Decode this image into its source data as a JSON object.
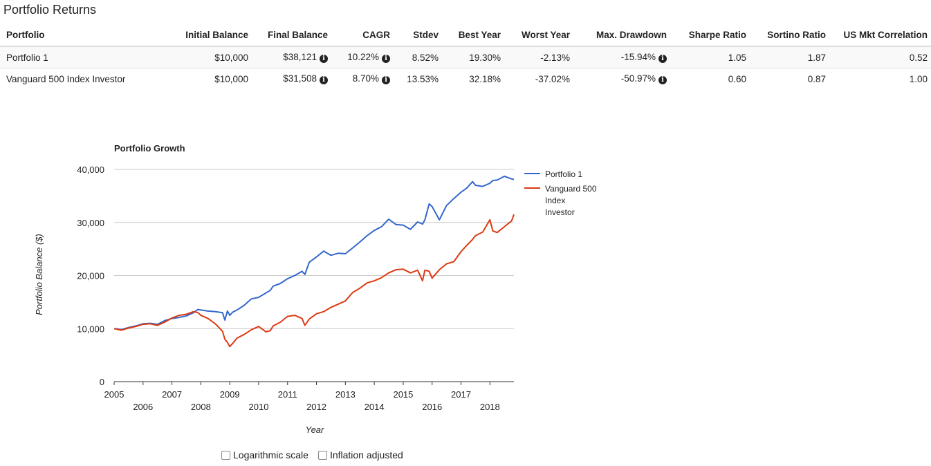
{
  "page_title": "Portfolio Returns",
  "table": {
    "columns": [
      "Portfolio",
      "Initial Balance",
      "Final Balance",
      "CAGR",
      "Stdev",
      "Best Year",
      "Worst Year",
      "Max. Drawdown",
      "Sharpe Ratio",
      "Sortino Ratio",
      "US Mkt Correlation"
    ],
    "rows": [
      {
        "portfolio": "Portfolio 1",
        "initial_balance": "$10,000",
        "final_balance": "$38,121",
        "cagr": "10.22%",
        "stdev": "8.52%",
        "best_year": "19.30%",
        "worst_year": "-2.13%",
        "max_drawdown": "-15.94%",
        "sharpe": "1.05",
        "sortino": "1.87",
        "us_mkt_corr": "0.52"
      },
      {
        "portfolio": "Vanguard 500 Index Investor",
        "initial_balance": "$10,000",
        "final_balance": "$31,508",
        "cagr": "8.70%",
        "stdev": "13.53%",
        "best_year": "32.18%",
        "worst_year": "-37.02%",
        "max_drawdown": "-50.97%",
        "sharpe": "0.60",
        "sortino": "0.87",
        "us_mkt_corr": "1.00"
      }
    ],
    "info_icon": "info-circle-icon"
  },
  "chart_data": {
    "type": "line",
    "title": "Portfolio Growth",
    "xlabel": "Year",
    "ylabel": "Portfolio Balance ($)",
    "xlim": [
      2005.0,
      2018.83
    ],
    "ylim": [
      0,
      40000
    ],
    "yticks": [
      0,
      10000,
      20000,
      30000,
      40000
    ],
    "ytick_labels": [
      "0",
      "10,000",
      "20,000",
      "30,000",
      "40,000"
    ],
    "xticks": [
      2005,
      2006,
      2007,
      2008,
      2009,
      2010,
      2011,
      2012,
      2013,
      2014,
      2015,
      2016,
      2017,
      2018
    ],
    "xtick_labels": [
      "2005",
      "2006",
      "2007",
      "2008",
      "2009",
      "2010",
      "2011",
      "2012",
      "2013",
      "2014",
      "2015",
      "2016",
      "2017",
      "2018"
    ],
    "grid": true,
    "legend_position": "right",
    "series": [
      {
        "name": "Portfolio 1",
        "color": "#3366cc",
        "x": [
          2005.0,
          2005.25,
          2005.5,
          2005.75,
          2006.0,
          2006.25,
          2006.5,
          2006.75,
          2007.0,
          2007.25,
          2007.5,
          2007.75,
          2007.9,
          2008.0,
          2008.25,
          2008.5,
          2008.75,
          2008.83,
          2008.92,
          2009.0,
          2009.1,
          2009.25,
          2009.5,
          2009.75,
          2010.0,
          2010.25,
          2010.4,
          2010.5,
          2010.75,
          2011.0,
          2011.25,
          2011.5,
          2011.6,
          2011.75,
          2012.0,
          2012.25,
          2012.5,
          2012.75,
          2013.0,
          2013.25,
          2013.5,
          2013.75,
          2014.0,
          2014.25,
          2014.5,
          2014.75,
          2015.0,
          2015.25,
          2015.5,
          2015.67,
          2015.75,
          2015.9,
          2016.0,
          2016.25,
          2016.5,
          2016.75,
          2017.0,
          2017.2,
          2017.4,
          2017.5,
          2017.75,
          2018.0,
          2018.1,
          2018.25,
          2018.5,
          2018.75,
          2018.83
        ],
        "y": [
          10000,
          9800,
          10200,
          10500,
          10900,
          11000,
          10800,
          11500,
          11900,
          12100,
          12400,
          13000,
          13600,
          13500,
          13300,
          13200,
          13000,
          11600,
          13300,
          12500,
          13100,
          13500,
          14400,
          15600,
          15900,
          16700,
          17200,
          18000,
          18500,
          19400,
          20000,
          20800,
          20200,
          22500,
          23500,
          24600,
          23800,
          24200,
          24100,
          25200,
          26300,
          27500,
          28500,
          29200,
          30600,
          29600,
          29500,
          28700,
          30100,
          29700,
          30500,
          33500,
          33000,
          30500,
          33200,
          34500,
          35700,
          36500,
          37700,
          37000,
          36800,
          37400,
          37900,
          38000,
          38700,
          38200,
          38121
        ]
      },
      {
        "name": "Vanguard 500 Index Investor",
        "color": "#dc3912",
        "x": [
          2005.0,
          2005.25,
          2005.5,
          2005.75,
          2006.0,
          2006.25,
          2006.5,
          2006.75,
          2007.0,
          2007.25,
          2007.5,
          2007.75,
          2007.9,
          2008.0,
          2008.25,
          2008.5,
          2008.75,
          2008.83,
          2008.92,
          2009.0,
          2009.1,
          2009.25,
          2009.5,
          2009.75,
          2010.0,
          2010.25,
          2010.4,
          2010.5,
          2010.75,
          2011.0,
          2011.25,
          2011.5,
          2011.6,
          2011.75,
          2012.0,
          2012.25,
          2012.5,
          2012.75,
          2013.0,
          2013.25,
          2013.5,
          2013.75,
          2014.0,
          2014.25,
          2014.5,
          2014.75,
          2015.0,
          2015.25,
          2015.5,
          2015.67,
          2015.75,
          2015.9,
          2016.0,
          2016.25,
          2016.5,
          2016.75,
          2017.0,
          2017.2,
          2017.4,
          2017.5,
          2017.75,
          2018.0,
          2018.1,
          2018.25,
          2018.5,
          2018.75,
          2018.83
        ],
        "y": [
          10000,
          9700,
          10100,
          10400,
          10800,
          10900,
          10600,
          11200,
          12000,
          12500,
          12700,
          13200,
          13000,
          12500,
          11900,
          10900,
          9500,
          8000,
          7400,
          6600,
          7200,
          8200,
          8900,
          9800,
          10400,
          9400,
          9600,
          10500,
          11200,
          12300,
          12500,
          11900,
          10600,
          11800,
          12800,
          13200,
          14000,
          14600,
          15200,
          16800,
          17600,
          18600,
          19000,
          19600,
          20500,
          21100,
          21200,
          20500,
          21000,
          19000,
          21000,
          20800,
          19500,
          21100,
          22200,
          22600,
          24500,
          25700,
          26800,
          27500,
          28200,
          30500,
          28400,
          28100,
          29200,
          30300,
          31508
        ]
      }
    ]
  },
  "controls": {
    "log_scale_label": "Logarithmic scale",
    "inflation_label": "Inflation adjusted",
    "log_scale_checked": false,
    "inflation_checked": false
  }
}
